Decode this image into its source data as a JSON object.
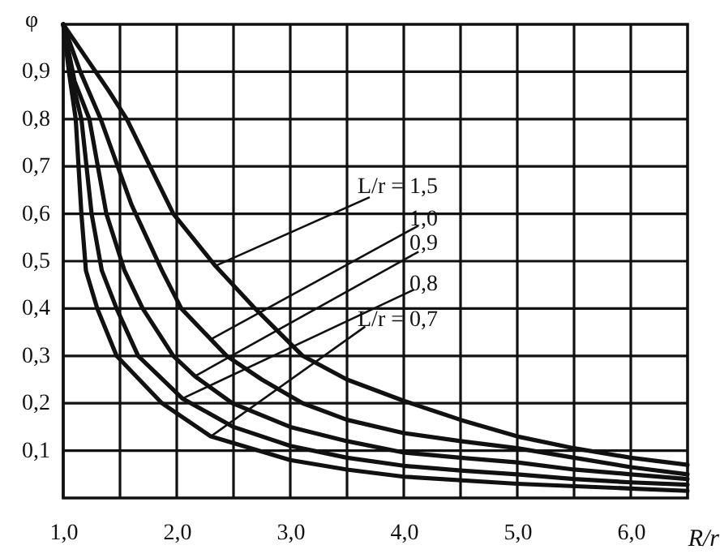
{
  "chart_data": {
    "type": "line",
    "xlabel": "R/r",
    "ylabel": "φ",
    "xlim": [
      1,
      6.5
    ],
    "xticks": [
      {
        "value": 1,
        "label": "1,0"
      },
      {
        "value": 1.5,
        "label": null
      },
      {
        "value": 2,
        "label": "2,0"
      },
      {
        "value": 2.5,
        "label": null
      },
      {
        "value": 3,
        "label": "3,0"
      },
      {
        "value": 3.5,
        "label": null
      },
      {
        "value": 4,
        "label": "4,0"
      },
      {
        "value": 4.5,
        "label": null
      },
      {
        "value": 5,
        "label": "5,0"
      },
      {
        "value": 5.5,
        "label": null
      },
      {
        "value": 6,
        "label": "6,0"
      }
    ],
    "ylim": [
      0,
      1
    ],
    "yticks": [
      {
        "value": 0.1,
        "label": "0,1"
      },
      {
        "value": 0.2,
        "label": "0,2"
      },
      {
        "value": 0.3,
        "label": "0,3"
      },
      {
        "value": 0.4,
        "label": "0,4"
      },
      {
        "value": 0.5,
        "label": "0,5"
      },
      {
        "value": 0.6,
        "label": "0,6"
      },
      {
        "value": 0.7,
        "label": "0,7"
      },
      {
        "value": 0.8,
        "label": "0,8"
      },
      {
        "value": 0.9,
        "label": "0,9"
      }
    ],
    "grid": true,
    "annotations": [
      {
        "text": "L/r = 1,5",
        "x": 2.34,
        "y": 0.49
      },
      {
        "text": "1,0",
        "x": 2.3,
        "y": 0.335
      },
      {
        "text": "0,9",
        "x": 2.16,
        "y": 0.257
      },
      {
        "text": "0,8",
        "x": 2.05,
        "y": 0.21
      },
      {
        "text": "L/r = 0,7",
        "x": 2.3,
        "y": 0.13
      }
    ],
    "series": [
      {
        "color": "#111111",
        "x": [
          1,
          1.2,
          1.4,
          1.56,
          1.97,
          2.34,
          2.69,
          3.11,
          3.5,
          4,
          4.5,
          5,
          5.5,
          6,
          6.5
        ],
        "values": [
          1,
          0.93,
          0.86,
          0.8,
          0.6,
          0.49,
          0.4,
          0.3,
          0.25,
          0.205,
          0.165,
          0.13,
          0.105,
          0.085,
          0.07
        ]
      },
      {
        "color": "#111111",
        "x": [
          1,
          1.15,
          1.33,
          1.6,
          1.87,
          2.04,
          2.3,
          2.44,
          2.75,
          3.11,
          3.5,
          4,
          4.5,
          5,
          5.5,
          6,
          6.5
        ],
        "values": [
          1,
          0.9,
          0.8,
          0.62,
          0.48,
          0.4,
          0.335,
          0.3,
          0.25,
          0.2,
          0.165,
          0.137,
          0.12,
          0.105,
          0.085,
          0.065,
          0.05
        ]
      },
      {
        "color": "#111111",
        "x": [
          1,
          1.1,
          1.23,
          1.38,
          1.54,
          1.7,
          1.97,
          2.16,
          2.49,
          3,
          3.5,
          4,
          4.5,
          5,
          5.5,
          6,
          6.5
        ],
        "values": [
          1,
          0.88,
          0.8,
          0.6,
          0.48,
          0.4,
          0.3,
          0.257,
          0.2,
          0.15,
          0.12,
          0.096,
          0.085,
          0.075,
          0.06,
          0.05,
          0.04
        ]
      },
      {
        "color": "#111111",
        "x": [
          1,
          1.08,
          1.16,
          1.25,
          1.34,
          1.47,
          1.66,
          2.05,
          2.5,
          3,
          3.5,
          4,
          4.5,
          5,
          5.5,
          6,
          6.5
        ],
        "values": [
          1,
          0.88,
          0.8,
          0.6,
          0.48,
          0.4,
          0.3,
          0.21,
          0.15,
          0.11,
          0.085,
          0.068,
          0.058,
          0.05,
          0.04,
          0.033,
          0.028
        ]
      },
      {
        "color": "#111111",
        "x": [
          1,
          1.05,
          1.11,
          1.16,
          1.2,
          1.3,
          1.47,
          1.87,
          2.3,
          3,
          3.5,
          4,
          5,
          6,
          6.5
        ],
        "values": [
          1,
          0.9,
          0.8,
          0.6,
          0.48,
          0.4,
          0.3,
          0.2,
          0.13,
          0.08,
          0.06,
          0.045,
          0.03,
          0.02,
          0.015
        ]
      }
    ]
  }
}
